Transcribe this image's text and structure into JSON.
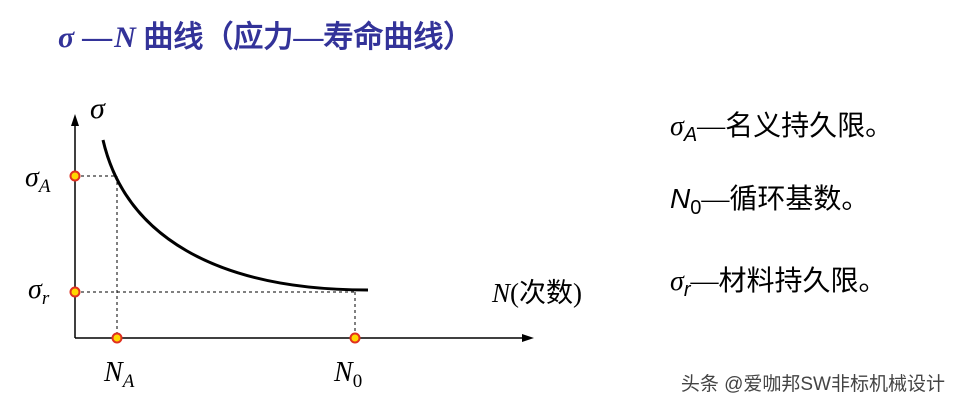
{
  "title": {
    "sigma": "σ",
    "dash": "—",
    "n": "N",
    "text": " 曲线（应力—寿命曲线）"
  },
  "axes": {
    "y_label": "σ",
    "x_label_n": "N",
    "x_label_rest": "(次数)"
  },
  "ticks": {
    "sigma_a": {
      "main": "σ",
      "sub": "A"
    },
    "sigma_r": {
      "main": "σ",
      "sub": "r"
    },
    "n_a": {
      "main": "N",
      "sub": "A"
    },
    "n_0": {
      "main": "N",
      "sub": "0"
    }
  },
  "legend": [
    {
      "symbol": "σ",
      "sub": "A",
      "dash": "—",
      "text": "名义持久限。"
    },
    {
      "symbol": "N",
      "sub": "0",
      "dash": "—",
      "text": "循环基数。"
    },
    {
      "symbol": "σ",
      "sub": "r",
      "dash": "—",
      "text": "材料持久限。"
    }
  ],
  "watermark": "头条 @爱咖邦SW非标机械设计",
  "colors": {
    "title": "#333399",
    "curve": "#000000",
    "marker_fill": "#ffd700",
    "marker_stroke": "#e03020"
  }
}
